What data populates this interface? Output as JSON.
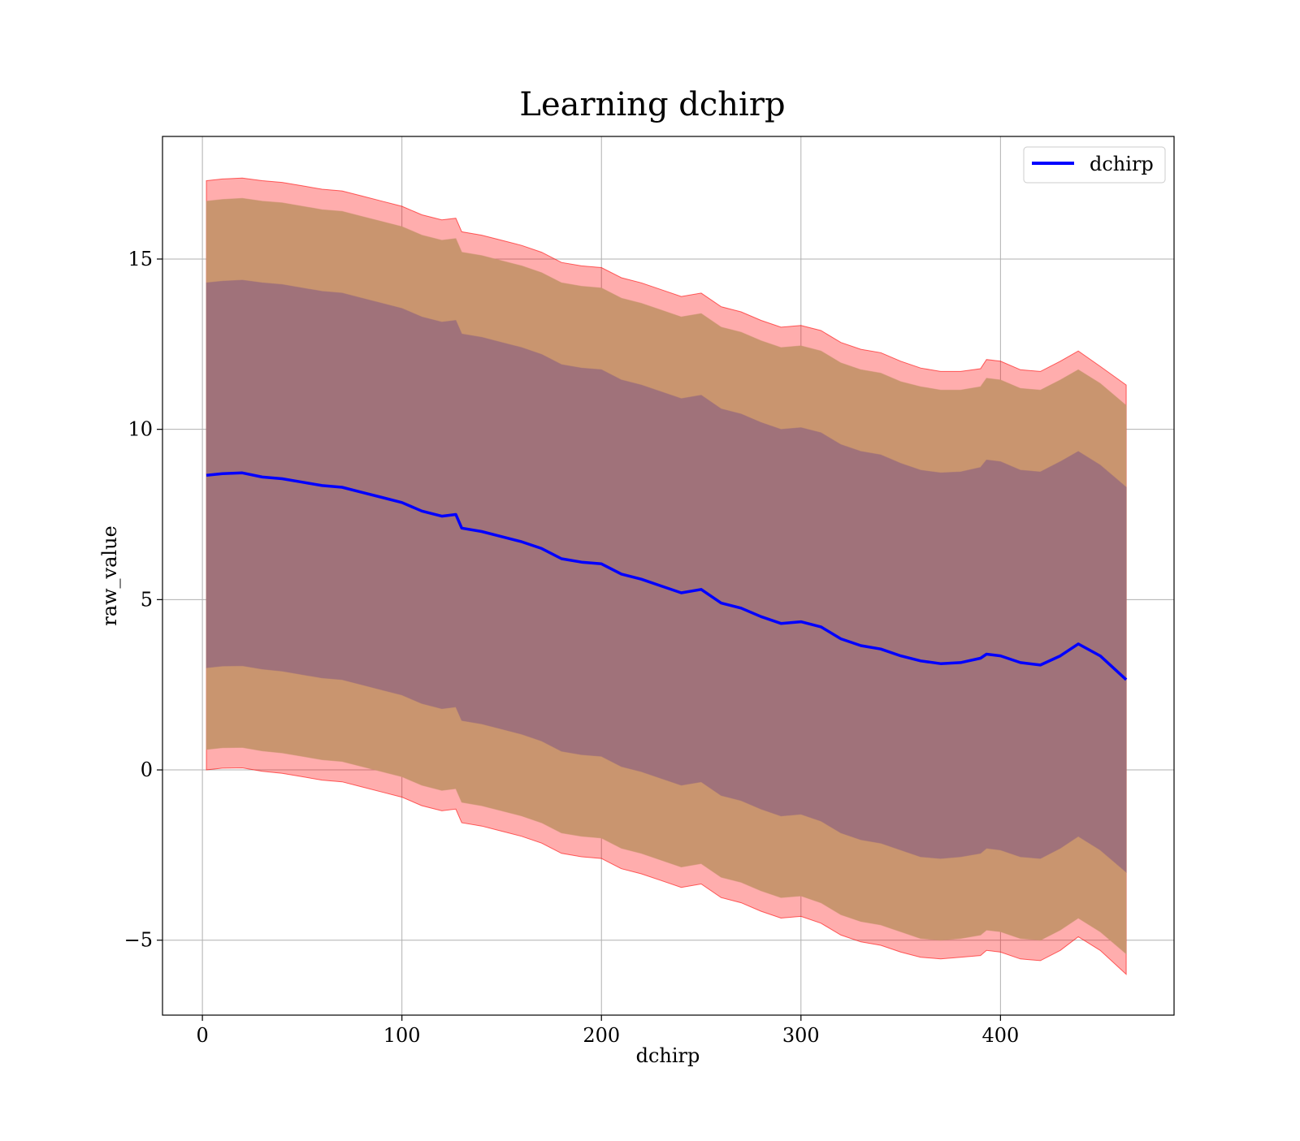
{
  "chart_data": {
    "type": "line",
    "title": "Learning dchirp",
    "xlabel": "dchirp",
    "ylabel": "raw_value",
    "xlim": [
      -20,
      487
    ],
    "ylim": [
      -7.2,
      18.6
    ],
    "xticks": [
      0,
      100,
      200,
      300,
      400
    ],
    "xtick_labels": [
      "0",
      "100",
      "200",
      "300",
      "400"
    ],
    "yticks": [
      -5,
      0,
      5,
      10,
      15
    ],
    "ytick_labels": [
      "−5",
      "0",
      "5",
      "10",
      "15"
    ],
    "grid": true,
    "legend": {
      "position": "top-right",
      "entries": [
        "dchirp"
      ]
    },
    "colors": {
      "line": "#0000ff",
      "outer_band": "#ff0000",
      "middle_band": "#c9956f",
      "inner_band": "#a0727a",
      "grid": "#b0b0b0"
    },
    "x": [
      2,
      10,
      20,
      30,
      40,
      50,
      60,
      70,
      80,
      90,
      100,
      110,
      120,
      127,
      130,
      140,
      150,
      160,
      170,
      180,
      190,
      200,
      210,
      220,
      230,
      240,
      250,
      260,
      270,
      280,
      290,
      300,
      310,
      320,
      330,
      340,
      350,
      360,
      370,
      380,
      390,
      393,
      400,
      410,
      420,
      430,
      439,
      450,
      463
    ],
    "series": [
      {
        "name": "dchirp",
        "values": [
          8.65,
          8.7,
          8.72,
          8.6,
          8.55,
          8.45,
          8.35,
          8.3,
          8.15,
          8.0,
          7.85,
          7.6,
          7.45,
          7.5,
          7.1,
          7.0,
          6.85,
          6.7,
          6.5,
          6.2,
          6.1,
          6.05,
          5.75,
          5.6,
          5.4,
          5.2,
          5.3,
          4.9,
          4.75,
          4.5,
          4.3,
          4.35,
          4.2,
          3.85,
          3.65,
          3.55,
          3.35,
          3.2,
          3.12,
          3.15,
          3.28,
          3.4,
          3.35,
          3.15,
          3.08,
          3.35,
          3.7,
          3.35,
          2.65
        ]
      },
      {
        "name": "",
        "values_upper": [
          17.3,
          17.35,
          17.38,
          17.3,
          17.25,
          17.15,
          17.05,
          17.0,
          16.85,
          16.7,
          16.55,
          16.3,
          16.15,
          16.2,
          15.8,
          15.7,
          15.55,
          15.4,
          15.2,
          14.9,
          14.8,
          14.75,
          14.45,
          14.3,
          14.1,
          13.9,
          14.0,
          13.6,
          13.45,
          13.2,
          13.0,
          13.05,
          12.9,
          12.55,
          12.35,
          12.25,
          12.0,
          11.8,
          11.7,
          11.7,
          11.78,
          12.05,
          12.0,
          11.75,
          11.7,
          12.0,
          12.3,
          11.85,
          11.3
        ],
        "values_lower": [
          0.0,
          0.05,
          0.06,
          -0.04,
          -0.1,
          -0.2,
          -0.3,
          -0.35,
          -0.5,
          -0.65,
          -0.8,
          -1.05,
          -1.2,
          -1.15,
          -1.55,
          -1.65,
          -1.8,
          -1.95,
          -2.15,
          -2.45,
          -2.55,
          -2.6,
          -2.9,
          -3.05,
          -3.25,
          -3.45,
          -3.35,
          -3.75,
          -3.9,
          -4.15,
          -4.35,
          -4.3,
          -4.5,
          -4.85,
          -5.05,
          -5.15,
          -5.35,
          -5.5,
          -5.55,
          -5.5,
          -5.45,
          -5.3,
          -5.35,
          -5.55,
          -5.6,
          -5.3,
          -4.9,
          -5.3,
          -6.0
        ]
      },
      {
        "name": "",
        "values_upper": [
          16.7,
          16.75,
          16.78,
          16.7,
          16.65,
          16.55,
          16.45,
          16.4,
          16.25,
          16.1,
          15.95,
          15.7,
          15.55,
          15.6,
          15.2,
          15.1,
          14.95,
          14.8,
          14.6,
          14.3,
          14.2,
          14.15,
          13.85,
          13.7,
          13.5,
          13.3,
          13.4,
          13.0,
          12.85,
          12.6,
          12.4,
          12.45,
          12.3,
          11.95,
          11.75,
          11.65,
          11.4,
          11.25,
          11.15,
          11.15,
          11.25,
          11.5,
          11.45,
          11.2,
          11.15,
          11.45,
          11.75,
          11.35,
          10.7
        ],
        "values_lower": [
          0.6,
          0.65,
          0.66,
          0.56,
          0.5,
          0.4,
          0.3,
          0.25,
          0.1,
          -0.05,
          -0.2,
          -0.45,
          -0.6,
          -0.55,
          -0.95,
          -1.05,
          -1.2,
          -1.35,
          -1.55,
          -1.85,
          -1.95,
          -2.0,
          -2.3,
          -2.45,
          -2.65,
          -2.85,
          -2.75,
          -3.15,
          -3.3,
          -3.55,
          -3.75,
          -3.7,
          -3.9,
          -4.25,
          -4.45,
          -4.55,
          -4.75,
          -4.95,
          -5.0,
          -4.95,
          -4.85,
          -4.7,
          -4.75,
          -4.95,
          -5.0,
          -4.7,
          -4.35,
          -4.75,
          -5.4
        ]
      },
      {
        "name": "",
        "values_upper": [
          14.3,
          14.35,
          14.38,
          14.3,
          14.25,
          14.15,
          14.05,
          14.0,
          13.85,
          13.7,
          13.55,
          13.3,
          13.15,
          13.2,
          12.8,
          12.7,
          12.55,
          12.4,
          12.2,
          11.9,
          11.8,
          11.75,
          11.45,
          11.3,
          11.1,
          10.9,
          11.0,
          10.6,
          10.45,
          10.2,
          10.0,
          10.05,
          9.9,
          9.55,
          9.35,
          9.25,
          9.0,
          8.8,
          8.72,
          8.75,
          8.88,
          9.1,
          9.05,
          8.8,
          8.75,
          9.05,
          9.35,
          8.95,
          8.3
        ],
        "values_lower": [
          3.0,
          3.05,
          3.06,
          2.96,
          2.9,
          2.8,
          2.7,
          2.65,
          2.5,
          2.35,
          2.2,
          1.95,
          1.8,
          1.85,
          1.45,
          1.35,
          1.2,
          1.05,
          0.85,
          0.55,
          0.45,
          0.4,
          0.1,
          -0.05,
          -0.25,
          -0.45,
          -0.35,
          -0.75,
          -0.9,
          -1.15,
          -1.35,
          -1.3,
          -1.5,
          -1.85,
          -2.05,
          -2.15,
          -2.35,
          -2.55,
          -2.6,
          -2.55,
          -2.45,
          -2.3,
          -2.35,
          -2.55,
          -2.6,
          -2.3,
          -1.95,
          -2.35,
          -3.0
        ]
      }
    ]
  }
}
